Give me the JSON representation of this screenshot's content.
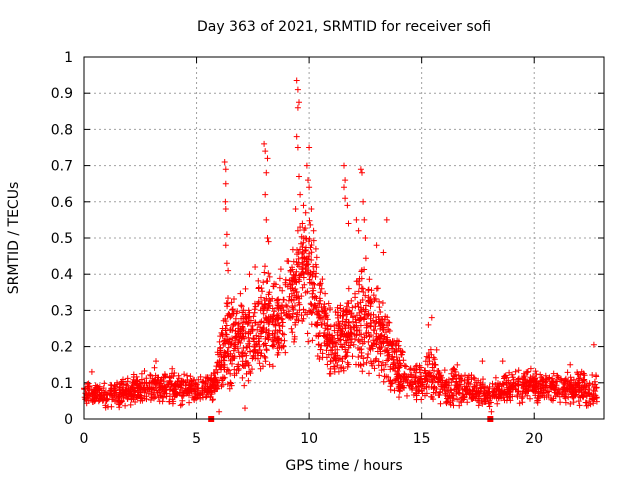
{
  "chart_data": {
    "type": "scatter",
    "title": "Day 363 of 2021, SRMTID for receiver sofi",
    "xlabel": "GPS time / hours",
    "ylabel": "SRMTID / TECUs",
    "xlim": [
      0,
      23.1
    ],
    "ylim": [
      0,
      1
    ],
    "x_ticks": [
      0,
      5,
      10,
      15,
      20
    ],
    "y_ticks": [
      0,
      0.1,
      0.2,
      0.3,
      0.4,
      0.5,
      0.6,
      0.7,
      0.8,
      0.9,
      1
    ],
    "x_tick_labels": [
      "0",
      "5",
      "10",
      "15",
      "20"
    ],
    "y_tick_labels": [
      "0",
      "0.1",
      "0.2",
      "0.3",
      "0.4",
      "0.5",
      "0.6",
      "0.7",
      "0.8",
      "0.9",
      "1"
    ],
    "grid": true,
    "marker": "+",
    "color": "#ff0000",
    "axis_markers_x": [
      5.65,
      18.05
    ],
    "series": [
      {
        "name": "SRMTID",
        "envelope": [
          {
            "x": 0.0,
            "low": 0.04,
            "high": 0.11
          },
          {
            "x": 1.0,
            "low": 0.03,
            "high": 0.1
          },
          {
            "x": 2.0,
            "low": 0.03,
            "high": 0.12
          },
          {
            "x": 3.0,
            "low": 0.04,
            "high": 0.15
          },
          {
            "x": 4.0,
            "low": 0.03,
            "high": 0.14
          },
          {
            "x": 5.0,
            "low": 0.04,
            "high": 0.12
          },
          {
            "x": 5.8,
            "low": 0.05,
            "high": 0.13
          },
          {
            "x": 6.3,
            "low": 0.06,
            "high": 0.35
          },
          {
            "x": 7.0,
            "low": 0.08,
            "high": 0.38
          },
          {
            "x": 7.5,
            "low": 0.1,
            "high": 0.35
          },
          {
            "x": 8.0,
            "low": 0.12,
            "high": 0.45
          },
          {
            "x": 8.5,
            "low": 0.12,
            "high": 0.4
          },
          {
            "x": 9.0,
            "low": 0.15,
            "high": 0.45
          },
          {
            "x": 9.5,
            "low": 0.2,
            "high": 0.55
          },
          {
            "x": 10.0,
            "low": 0.2,
            "high": 0.6
          },
          {
            "x": 10.5,
            "low": 0.15,
            "high": 0.42
          },
          {
            "x": 11.0,
            "low": 0.1,
            "high": 0.3
          },
          {
            "x": 11.5,
            "low": 0.1,
            "high": 0.35
          },
          {
            "x": 12.0,
            "low": 0.12,
            "high": 0.4
          },
          {
            "x": 12.5,
            "low": 0.12,
            "high": 0.45
          },
          {
            "x": 13.0,
            "low": 0.1,
            "high": 0.4
          },
          {
            "x": 13.5,
            "low": 0.08,
            "high": 0.3
          },
          {
            "x": 14.0,
            "low": 0.05,
            "high": 0.22
          },
          {
            "x": 14.5,
            "low": 0.04,
            "high": 0.15
          },
          {
            "x": 15.0,
            "low": 0.04,
            "high": 0.17
          },
          {
            "x": 15.5,
            "low": 0.04,
            "high": 0.22
          },
          {
            "x": 16.0,
            "low": 0.03,
            "high": 0.14
          },
          {
            "x": 16.5,
            "low": 0.03,
            "high": 0.17
          },
          {
            "x": 17.0,
            "low": 0.03,
            "high": 0.13
          },
          {
            "x": 18.0,
            "low": 0.03,
            "high": 0.11
          },
          {
            "x": 19.0,
            "low": 0.04,
            "high": 0.14
          },
          {
            "x": 20.0,
            "low": 0.04,
            "high": 0.14
          },
          {
            "x": 21.0,
            "low": 0.04,
            "high": 0.13
          },
          {
            "x": 22.0,
            "low": 0.03,
            "high": 0.14
          },
          {
            "x": 22.8,
            "low": 0.03,
            "high": 0.13
          }
        ],
        "outliers": [
          {
            "x": 6.25,
            "y": 0.71
          },
          {
            "x": 6.3,
            "y": 0.69
          },
          {
            "x": 6.3,
            "y": 0.65
          },
          {
            "x": 6.28,
            "y": 0.6
          },
          {
            "x": 6.3,
            "y": 0.58
          },
          {
            "x": 6.35,
            "y": 0.51
          },
          {
            "x": 6.3,
            "y": 0.48
          },
          {
            "x": 6.35,
            "y": 0.43
          },
          {
            "x": 6.4,
            "y": 0.41
          },
          {
            "x": 7.35,
            "y": 0.4
          },
          {
            "x": 7.6,
            "y": 0.42
          },
          {
            "x": 8.0,
            "y": 0.76
          },
          {
            "x": 8.05,
            "y": 0.74
          },
          {
            "x": 8.15,
            "y": 0.72
          },
          {
            "x": 8.1,
            "y": 0.68
          },
          {
            "x": 8.05,
            "y": 0.62
          },
          {
            "x": 8.1,
            "y": 0.55
          },
          {
            "x": 8.15,
            "y": 0.5
          },
          {
            "x": 8.2,
            "y": 0.49
          },
          {
            "x": 9.45,
            "y": 0.935
          },
          {
            "x": 9.5,
            "y": 0.91
          },
          {
            "x": 9.55,
            "y": 0.875
          },
          {
            "x": 9.5,
            "y": 0.86
          },
          {
            "x": 9.45,
            "y": 0.78
          },
          {
            "x": 9.5,
            "y": 0.75
          },
          {
            "x": 9.55,
            "y": 0.67
          },
          {
            "x": 9.6,
            "y": 0.62
          },
          {
            "x": 9.4,
            "y": 0.58
          },
          {
            "x": 9.6,
            "y": 0.53
          },
          {
            "x": 9.7,
            "y": 0.54
          },
          {
            "x": 9.5,
            "y": 0.52
          },
          {
            "x": 9.9,
            "y": 0.7
          },
          {
            "x": 10.0,
            "y": 0.75
          },
          {
            "x": 9.95,
            "y": 0.66
          },
          {
            "x": 10.0,
            "y": 0.64
          },
          {
            "x": 10.1,
            "y": 0.58
          },
          {
            "x": 9.85,
            "y": 0.57
          },
          {
            "x": 9.75,
            "y": 0.59
          },
          {
            "x": 10.2,
            "y": 0.52
          },
          {
            "x": 10.3,
            "y": 0.47
          },
          {
            "x": 11.55,
            "y": 0.7
          },
          {
            "x": 11.6,
            "y": 0.66
          },
          {
            "x": 11.55,
            "y": 0.64
          },
          {
            "x": 11.6,
            "y": 0.61
          },
          {
            "x": 11.7,
            "y": 0.59
          },
          {
            "x": 11.75,
            "y": 0.54
          },
          {
            "x": 12.1,
            "y": 0.55
          },
          {
            "x": 12.2,
            "y": 0.52
          },
          {
            "x": 12.3,
            "y": 0.69
          },
          {
            "x": 12.35,
            "y": 0.68
          },
          {
            "x": 12.4,
            "y": 0.6
          },
          {
            "x": 12.45,
            "y": 0.55
          },
          {
            "x": 12.5,
            "y": 0.5
          },
          {
            "x": 13.0,
            "y": 0.48
          },
          {
            "x": 13.45,
            "y": 0.55
          },
          {
            "x": 13.3,
            "y": 0.46
          },
          {
            "x": 0.35,
            "y": 0.13
          },
          {
            "x": 3.2,
            "y": 0.16
          },
          {
            "x": 6.0,
            "y": 0.02
          },
          {
            "x": 7.15,
            "y": 0.03
          },
          {
            "x": 15.45,
            "y": 0.28
          },
          {
            "x": 15.3,
            "y": 0.26
          },
          {
            "x": 17.7,
            "y": 0.16
          },
          {
            "x": 18.1,
            "y": 0.02
          },
          {
            "x": 18.6,
            "y": 0.16
          },
          {
            "x": 22.65,
            "y": 0.205
          },
          {
            "x": 21.6,
            "y": 0.15
          }
        ]
      }
    ]
  }
}
